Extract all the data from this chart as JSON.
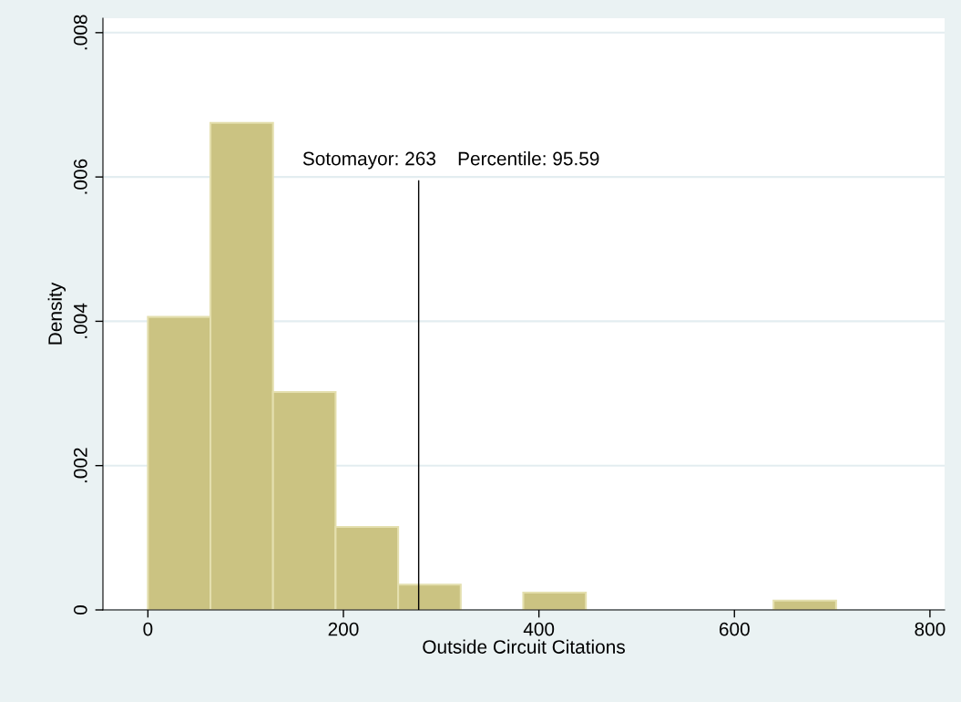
{
  "chart_data": {
    "type": "histogram",
    "xlabel": "Outside Circuit Citations",
    "ylabel": "Density",
    "bins": [
      0,
      64,
      128,
      192,
      256,
      320,
      384,
      448,
      512,
      576,
      640,
      704
    ],
    "values": [
      0.00406,
      0.00675,
      0.00302,
      0.00115,
      0.00035,
      0,
      0.00024,
      0,
      0,
      0,
      0.00013
    ],
    "color": "#cbc382",
    "xlim": [
      -46,
      815
    ],
    "xticks": [
      0,
      200,
      400,
      600,
      800
    ],
    "ylim": [
      0,
      0.0082
    ],
    "yticks": [
      {
        "value": 0,
        "label": "0"
      },
      {
        "value": 0.002,
        "label": ".002"
      },
      {
        "value": 0.004,
        "label": ".004"
      },
      {
        "value": 0.006,
        "label": ".006"
      },
      {
        "value": 0.008,
        "label": ".008"
      }
    ],
    "grid": "y",
    "annotations": [
      "Sotomayor: 263    Percentile: 95.59"
    ],
    "ref_lines": [
      {
        "axis": "x",
        "value": 277,
        "color": "#000000"
      }
    ]
  }
}
